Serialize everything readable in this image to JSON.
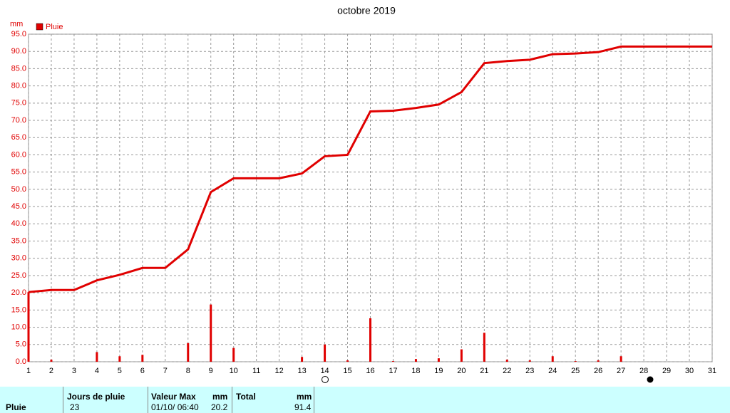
{
  "chart_data": {
    "type": "line",
    "title": "octobre 2019",
    "y_label": "mm",
    "x": [
      1,
      2,
      3,
      4,
      5,
      6,
      7,
      8,
      9,
      10,
      11,
      12,
      13,
      14,
      15,
      16,
      17,
      18,
      19,
      20,
      21,
      22,
      23,
      24,
      25,
      26,
      27,
      28,
      29,
      30,
      31
    ],
    "xlim": [
      1,
      31
    ],
    "xticks": [
      1,
      2,
      3,
      4,
      5,
      6,
      7,
      8,
      9,
      10,
      11,
      12,
      13,
      14,
      15,
      16,
      17,
      18,
      19,
      20,
      21,
      22,
      23,
      24,
      25,
      26,
      27,
      28,
      29,
      30,
      31
    ],
    "ylim": [
      0,
      95
    ],
    "yticks": [
      {
        "value": 0,
        "label": "0.0"
      },
      {
        "value": 5,
        "label": "5.0"
      },
      {
        "value": 10,
        "label": "10.0"
      },
      {
        "value": 15,
        "label": "15.0"
      },
      {
        "value": 20,
        "label": "20.0"
      },
      {
        "value": 25,
        "label": "25.0"
      },
      {
        "value": 30,
        "label": "30.0"
      },
      {
        "value": 35,
        "label": "35.0"
      },
      {
        "value": 40,
        "label": "40.0"
      },
      {
        "value": 45,
        "label": "45.0"
      },
      {
        "value": 50,
        "label": "50.0"
      },
      {
        "value": 55,
        "label": "55.0"
      },
      {
        "value": 60,
        "label": "60.0"
      },
      {
        "value": 65,
        "label": "65.0"
      },
      {
        "value": 70,
        "label": "70.0"
      },
      {
        "value": 75,
        "label": "75.0"
      },
      {
        "value": 80,
        "label": "80.0"
      },
      {
        "value": 85,
        "label": "85.0"
      },
      {
        "value": 90,
        "label": "90.0"
      },
      {
        "value": 95,
        "label": "95.0"
      }
    ],
    "grid": true,
    "series": [
      {
        "name": "Pluie",
        "color": "#e00000",
        "values": [
          20.2,
          20.8,
          20.8,
          23.6,
          25.2,
          27.2,
          27.2,
          32.6,
          49.2,
          53.2,
          53.2,
          53.2,
          54.6,
          59.6,
          60.0,
          72.6,
          72.8,
          73.6,
          74.6,
          78.2,
          86.6,
          87.2,
          87.6,
          89.2,
          89.4,
          89.8,
          91.4,
          91.4,
          91.4,
          91.4,
          91.4
        ]
      },
      {
        "type": "bar",
        "color": "#e00000",
        "values": [
          20.2,
          0.6,
          0,
          2.8,
          1.6,
          2.0,
          0,
          5.4,
          16.6,
          4.0,
          0,
          0,
          1.4,
          5.0,
          0.4,
          12.6,
          0.2,
          0.8,
          1.0,
          3.6,
          8.4,
          0.6,
          0.4,
          1.6,
          0.2,
          0.4,
          1.6,
          0,
          0,
          0,
          0
        ]
      }
    ]
  },
  "table": {
    "row_header": "Pluie",
    "days_header": "Jours de pluie",
    "days_value": "23",
    "max_header": "Valeur Max",
    "max_unit": "mm",
    "max_date": "01/10/ 06:40",
    "max_value": "20.2",
    "total_header": "Total",
    "total_unit": "mm",
    "total_value": "91.4"
  }
}
